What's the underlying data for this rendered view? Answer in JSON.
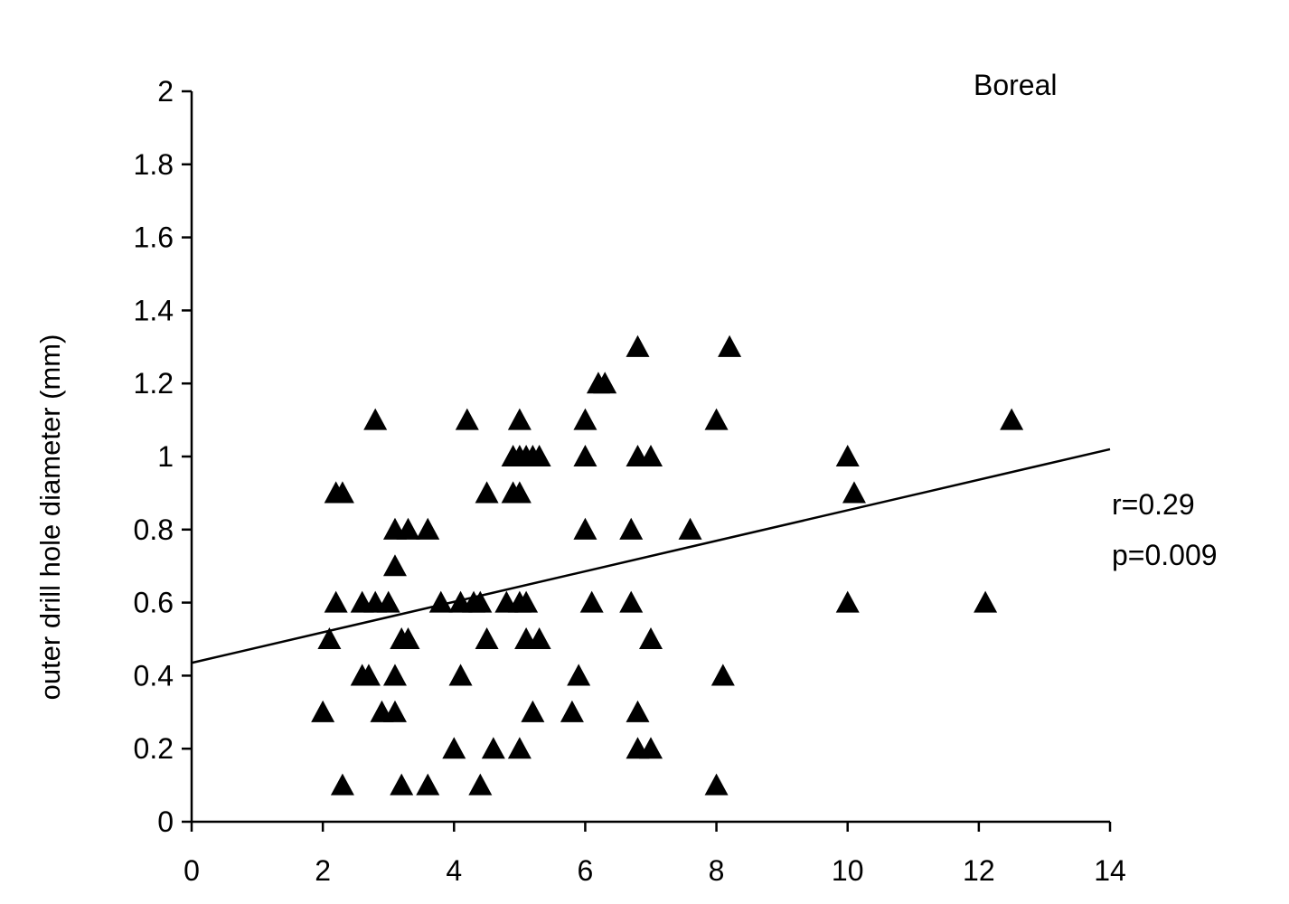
{
  "chart_data": {
    "type": "scatter",
    "title": "",
    "panel_label": "Boreal",
    "xlabel": "",
    "ylabel": "outer drill hole diameter (mm)",
    "xlim": [
      0,
      14
    ],
    "ylim": [
      0,
      2
    ],
    "xticks": [
      0,
      2,
      4,
      6,
      8,
      10,
      12,
      14
    ],
    "yticks": [
      0,
      0.2,
      0.4,
      0.6,
      0.8,
      1,
      1.2,
      1.4,
      1.6,
      1.8,
      2
    ],
    "ytick_labels": [
      "0",
      "0.2",
      "0.4",
      "0.6",
      "0.8",
      "1",
      "1.2",
      "1.4",
      "1.6",
      "1.8",
      "2"
    ],
    "grid": false,
    "marker": "triangle",
    "marker_color": "#000000",
    "points": [
      {
        "x": 2.0,
        "y": 0.3
      },
      {
        "x": 2.1,
        "y": 0.5
      },
      {
        "x": 2.2,
        "y": 0.6
      },
      {
        "x": 2.2,
        "y": 0.9
      },
      {
        "x": 2.3,
        "y": 0.9
      },
      {
        "x": 2.3,
        "y": 0.1
      },
      {
        "x": 2.6,
        "y": 0.6
      },
      {
        "x": 2.6,
        "y": 0.4
      },
      {
        "x": 2.7,
        "y": 0.4
      },
      {
        "x": 2.8,
        "y": 1.1
      },
      {
        "x": 2.8,
        "y": 0.6
      },
      {
        "x": 2.9,
        "y": 0.3
      },
      {
        "x": 3.0,
        "y": 0.6
      },
      {
        "x": 3.1,
        "y": 0.8
      },
      {
        "x": 3.1,
        "y": 0.7
      },
      {
        "x": 3.1,
        "y": 0.4
      },
      {
        "x": 3.1,
        "y": 0.3
      },
      {
        "x": 3.2,
        "y": 0.5
      },
      {
        "x": 3.2,
        "y": 0.1
      },
      {
        "x": 3.3,
        "y": 0.8
      },
      {
        "x": 3.3,
        "y": 0.5
      },
      {
        "x": 3.6,
        "y": 0.8
      },
      {
        "x": 3.6,
        "y": 0.1
      },
      {
        "x": 3.8,
        "y": 0.6
      },
      {
        "x": 4.0,
        "y": 0.2
      },
      {
        "x": 4.1,
        "y": 0.6
      },
      {
        "x": 4.1,
        "y": 0.4
      },
      {
        "x": 4.2,
        "y": 1.1
      },
      {
        "x": 4.3,
        "y": 0.6
      },
      {
        "x": 4.4,
        "y": 0.6
      },
      {
        "x": 4.4,
        "y": 0.1
      },
      {
        "x": 4.5,
        "y": 0.9
      },
      {
        "x": 4.5,
        "y": 0.5
      },
      {
        "x": 4.6,
        "y": 0.2
      },
      {
        "x": 4.8,
        "y": 0.6
      },
      {
        "x": 4.9,
        "y": 1.0
      },
      {
        "x": 4.9,
        "y": 0.9
      },
      {
        "x": 5.0,
        "y": 1.1
      },
      {
        "x": 5.0,
        "y": 1.0
      },
      {
        "x": 5.0,
        "y": 0.9
      },
      {
        "x": 5.0,
        "y": 0.6
      },
      {
        "x": 5.0,
        "y": 0.2
      },
      {
        "x": 5.1,
        "y": 1.0
      },
      {
        "x": 5.1,
        "y": 0.6
      },
      {
        "x": 5.1,
        "y": 0.5
      },
      {
        "x": 5.2,
        "y": 1.0
      },
      {
        "x": 5.2,
        "y": 0.3
      },
      {
        "x": 5.3,
        "y": 1.0
      },
      {
        "x": 5.3,
        "y": 0.5
      },
      {
        "x": 5.8,
        "y": 0.3
      },
      {
        "x": 5.9,
        "y": 0.4
      },
      {
        "x": 6.0,
        "y": 1.1
      },
      {
        "x": 6.0,
        "y": 1.0
      },
      {
        "x": 6.0,
        "y": 0.8
      },
      {
        "x": 6.1,
        "y": 0.6
      },
      {
        "x": 6.2,
        "y": 1.2
      },
      {
        "x": 6.3,
        "y": 1.2
      },
      {
        "x": 6.7,
        "y": 0.8
      },
      {
        "x": 6.7,
        "y": 0.6
      },
      {
        "x": 6.8,
        "y": 1.3
      },
      {
        "x": 6.8,
        "y": 1.0
      },
      {
        "x": 6.8,
        "y": 0.3
      },
      {
        "x": 6.8,
        "y": 0.2
      },
      {
        "x": 7.0,
        "y": 1.0
      },
      {
        "x": 7.0,
        "y": 0.5
      },
      {
        "x": 7.0,
        "y": 0.2
      },
      {
        "x": 7.6,
        "y": 0.8
      },
      {
        "x": 8.0,
        "y": 1.1
      },
      {
        "x": 8.0,
        "y": 0.1
      },
      {
        "x": 8.1,
        "y": 0.4
      },
      {
        "x": 8.2,
        "y": 1.3
      },
      {
        "x": 10.0,
        "y": 1.0
      },
      {
        "x": 10.0,
        "y": 0.6
      },
      {
        "x": 10.1,
        "y": 0.9
      },
      {
        "x": 12.1,
        "y": 0.6
      },
      {
        "x": 12.5,
        "y": 1.1
      }
    ],
    "trendline": {
      "x": [
        0,
        14
      ],
      "y": [
        0.435,
        1.02
      ]
    },
    "annotations": [
      "r=0.29",
      "p=0.009"
    ]
  }
}
